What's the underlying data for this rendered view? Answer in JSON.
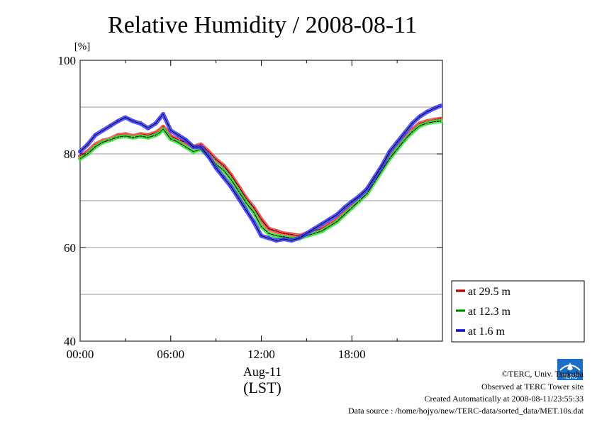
{
  "chart_data": {
    "type": "line",
    "title": "Relative Humidity / 2008-08-11",
    "ylabel": "[%]",
    "ylim": [
      40,
      100
    ],
    "yticks": [
      "100",
      "80",
      "60",
      "40"
    ],
    "xlim": [
      0,
      24
    ],
    "xticks": [
      "00:00",
      "06:00",
      "12:00",
      "18:00"
    ],
    "xlabel_date": "Aug-11",
    "xlabel_unit": "(LST)",
    "grid": true,
    "legend_position": "right, below plot",
    "series": [
      {
        "name": "at 29.5 m",
        "color": "#ff3b3b",
        "x": [
          0,
          0.5,
          1,
          1.5,
          2,
          2.5,
          3,
          3.5,
          4,
          4.5,
          5,
          5.25,
          5.5,
          6,
          6.5,
          7,
          7.5,
          8,
          8.5,
          9,
          9.5,
          10,
          10.5,
          11,
          11.5,
          12,
          12.5,
          13,
          13.5,
          14,
          14.5,
          15,
          15.5,
          16,
          16.5,
          17,
          17.5,
          18,
          18.5,
          19,
          19.5,
          20,
          20.5,
          21,
          21.5,
          22,
          22.5,
          23,
          23.5,
          23.9
        ],
        "y": [
          79.5,
          80.5,
          82,
          82.8,
          83.2,
          84,
          84.2,
          83.8,
          84.2,
          84,
          84.5,
          85,
          85.8,
          83.8,
          83,
          82.5,
          81.5,
          82,
          80.5,
          78.8,
          77.5,
          75.5,
          73,
          70.5,
          68.5,
          66,
          64,
          63.5,
          63,
          62.8,
          62.5,
          63,
          63.5,
          64,
          65,
          66,
          67.5,
          69,
          70.5,
          72,
          74.5,
          77,
          79.5,
          81.5,
          83.5,
          85.2,
          86.5,
          87,
          87.3,
          87.5
        ]
      },
      {
        "name": "at 12.3 m",
        "color": "#3bdc3b",
        "x": [
          0,
          0.5,
          1,
          1.5,
          2,
          2.5,
          3,
          3.5,
          4,
          4.5,
          5,
          5.25,
          5.5,
          6,
          6.5,
          7,
          7.5,
          8,
          8.5,
          9,
          9.5,
          10,
          10.5,
          11,
          11.5,
          12,
          12.5,
          13,
          13.5,
          14,
          14.5,
          15,
          15.5,
          16,
          16.5,
          17,
          17.5,
          18,
          18.5,
          19,
          19.5,
          20,
          20.5,
          21,
          21.5,
          22,
          22.5,
          23,
          23.5,
          23.9
        ],
        "y": [
          79,
          80,
          81.5,
          82.5,
          83,
          83.6,
          83.8,
          83.5,
          83.8,
          83.5,
          84,
          84.5,
          85.3,
          83.2,
          82.5,
          81.5,
          80.5,
          81,
          79.5,
          77.8,
          76.5,
          74.5,
          72,
          69.5,
          67.5,
          64.5,
          63,
          62.5,
          62.3,
          62,
          62,
          62.5,
          63,
          63.5,
          64.5,
          65.5,
          67,
          68.5,
          70,
          71.5,
          74,
          76.5,
          79,
          81,
          83,
          84.7,
          86,
          86.6,
          86.9,
          87
        ]
      },
      {
        "name": "at 1.6 m",
        "color": "#3b3bff",
        "x": [
          0,
          0.5,
          1,
          1.5,
          2,
          2.5,
          3,
          3.5,
          4,
          4.5,
          5,
          5.25,
          5.5,
          6,
          6.5,
          7,
          7.5,
          8,
          8.5,
          9,
          9.5,
          10,
          10.5,
          11,
          11.5,
          12,
          12.5,
          13,
          13.5,
          14,
          14.5,
          15,
          15.5,
          16,
          16.5,
          17,
          17.5,
          18,
          18.5,
          19,
          19.5,
          20,
          20.5,
          21,
          21.5,
          22,
          22.5,
          23,
          23.5,
          23.9
        ],
        "y": [
          80.5,
          82,
          84,
          85,
          86,
          87,
          87.8,
          87,
          86.5,
          85.5,
          86.5,
          87.5,
          88.5,
          85,
          84,
          83,
          81.5,
          81.5,
          79.5,
          77,
          75,
          73,
          70.5,
          68,
          65.5,
          62.5,
          62,
          61.5,
          61.8,
          61.5,
          62,
          63,
          64,
          65,
          66,
          67,
          68.5,
          69.8,
          71,
          72.5,
          75,
          77.5,
          80.5,
          82.5,
          84.5,
          86.5,
          88,
          89,
          89.8,
          90.3
        ]
      }
    ]
  },
  "footer": {
    "copyright": "©TERC, Univ. Tsukuba",
    "observed": "Observed at TERC Tower site",
    "created": "Created Automatically at 2008-08-11/23:55:33",
    "source": "Data source : /home/hojyo/new/TERC-data/sorted_data/MET.10s.dat",
    "logo_text": "TERC"
  }
}
